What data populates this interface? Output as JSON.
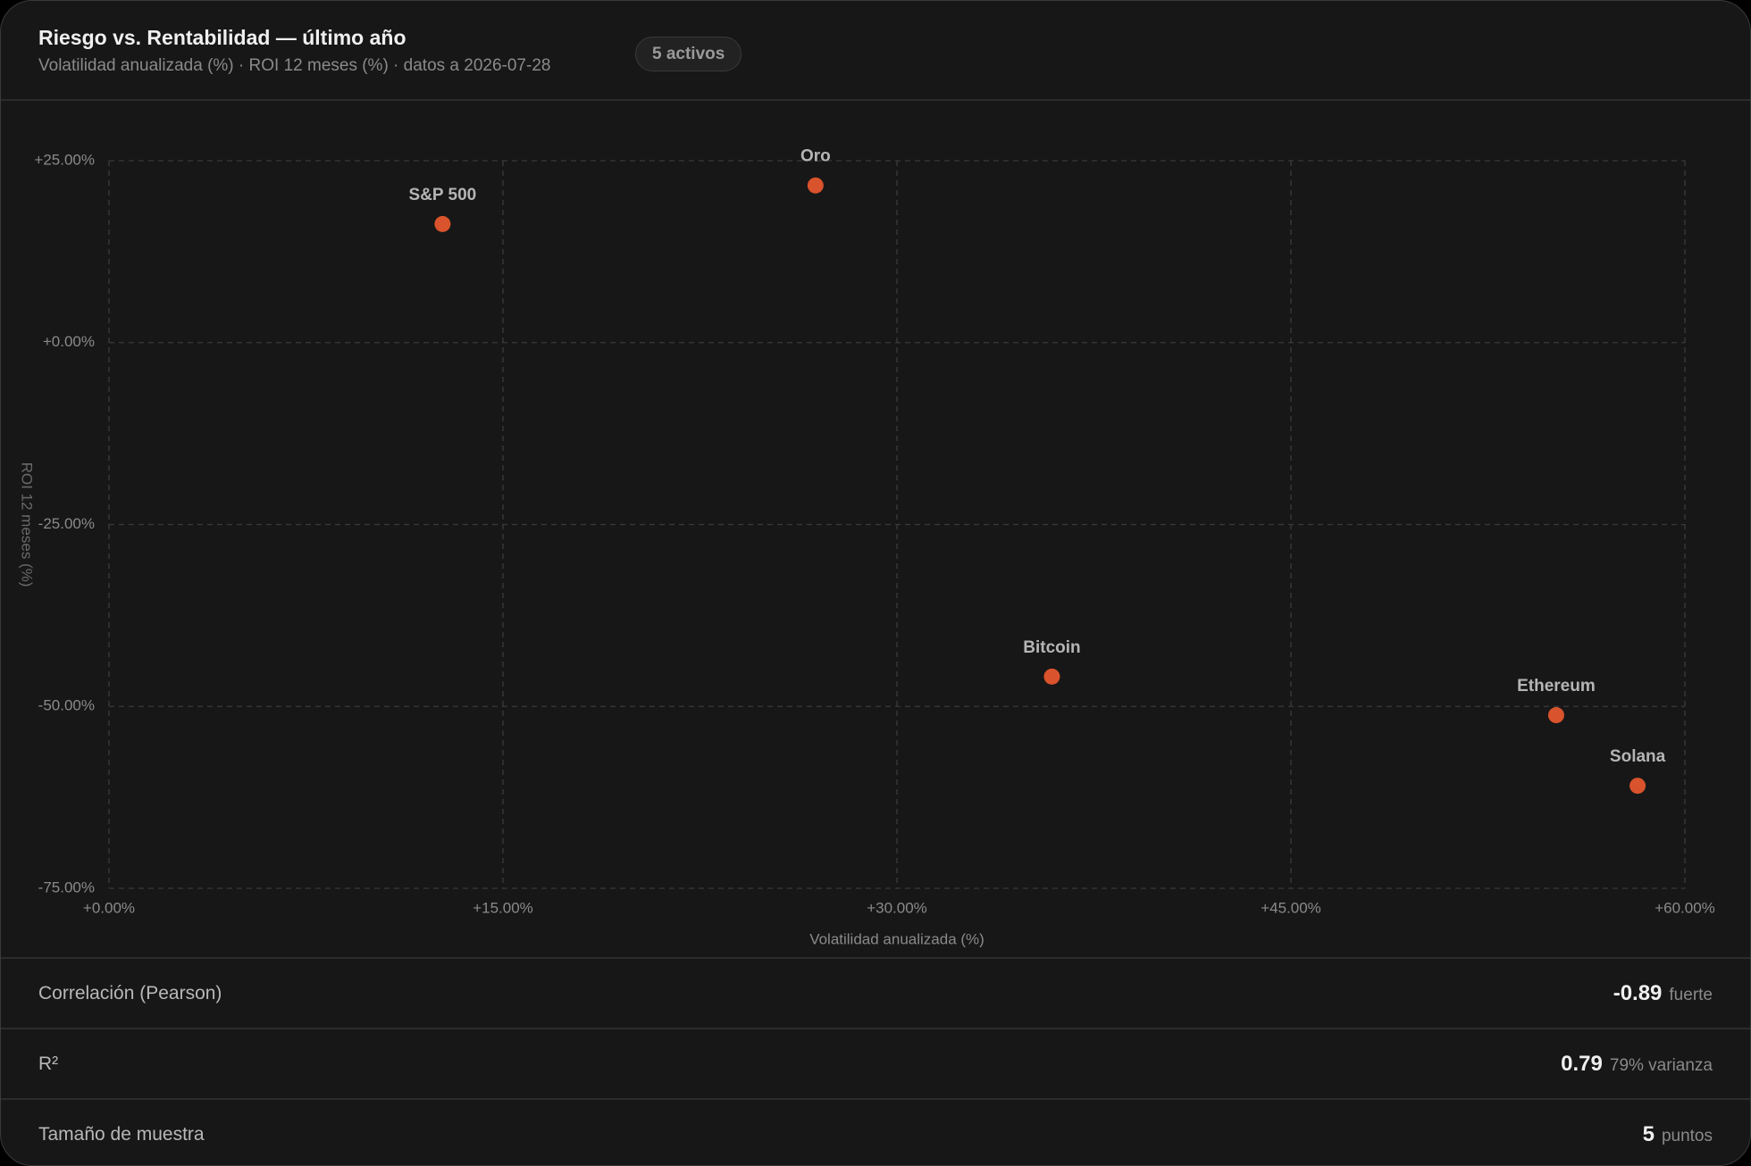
{
  "chart_data": {
    "type": "scatter",
    "title": "Riesgo vs. Rentabilidad — último año",
    "subtitle": "Volatilidad anualizada (%) · ROI 12 meses (%) · datos a 2026-07-28",
    "x_label": "Volatilidad anualizada (%)",
    "y_label": "ROI 12 meses (%)",
    "labels": [
      "S&P 500",
      "Oro",
      "Bitcoin",
      "Ethereum",
      "Solana"
    ],
    "x": [
      12.7,
      26.9,
      35.9,
      55.1,
      58.2
    ],
    "values": [
      16.3,
      21.6,
      -45.9,
      -51.2,
      -60.9
    ],
    "color": "#d9532c",
    "xlim": [
      0,
      60
    ],
    "xticks": [
      {
        "value": 0,
        "label": "+0.00%"
      },
      {
        "value": 15,
        "label": "+15.00%"
      },
      {
        "value": 30,
        "label": "+30.00%"
      },
      {
        "value": 45,
        "label": "+45.00%"
      },
      {
        "value": 60,
        "label": "+60.00%"
      }
    ],
    "ylim": [
      -75,
      25
    ],
    "yticks": [
      {
        "value": -75,
        "label": "-75.00%"
      },
      {
        "value": -50,
        "label": "-50.00%"
      },
      {
        "value": -25,
        "label": "-25.00%"
      },
      {
        "value": 0,
        "label": "+0.00%"
      },
      {
        "value": 25,
        "label": "+25.00%"
      }
    ],
    "grid": true
  },
  "badge": "5 activos",
  "stats": [
    {
      "label": "Correlación (Pearson)",
      "value": -0.89,
      "note": "fuerte"
    },
    {
      "label": "R²",
      "value": 0.79,
      "note": "79% varianza"
    },
    {
      "label": "Tamaño de muestra",
      "value": 5,
      "note": "puntos"
    }
  ]
}
